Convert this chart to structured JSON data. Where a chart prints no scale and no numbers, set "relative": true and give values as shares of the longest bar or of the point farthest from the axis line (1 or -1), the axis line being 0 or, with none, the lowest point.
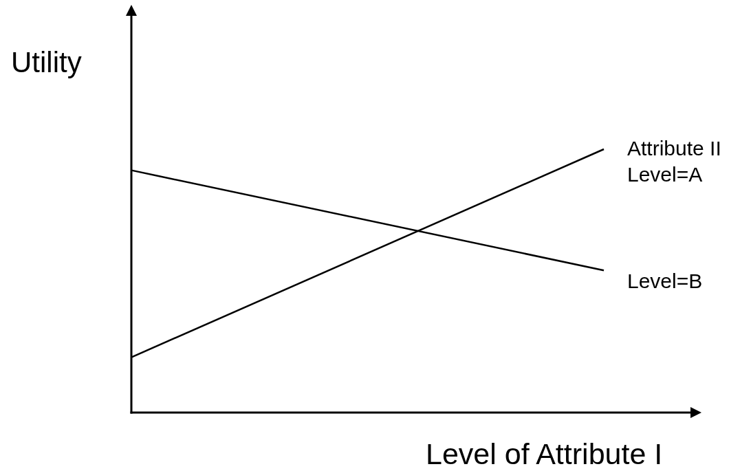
{
  "chart_data": {
    "type": "line",
    "xlabel": "Level of Attribute I",
    "ylabel": "Utility",
    "legend_title": "Attribute II",
    "categories": [
      null,
      null
    ],
    "relative": true,
    "legend": false,
    "marker": "none",
    "series": [
      {
        "name": "Level=A",
        "color": "#000000",
        "values": [
          0.21,
          1
        ]
      },
      {
        "name": "Level=B",
        "color": "#000000",
        "values": [
          0.92,
          0.54
        ]
      }
    ]
  }
}
